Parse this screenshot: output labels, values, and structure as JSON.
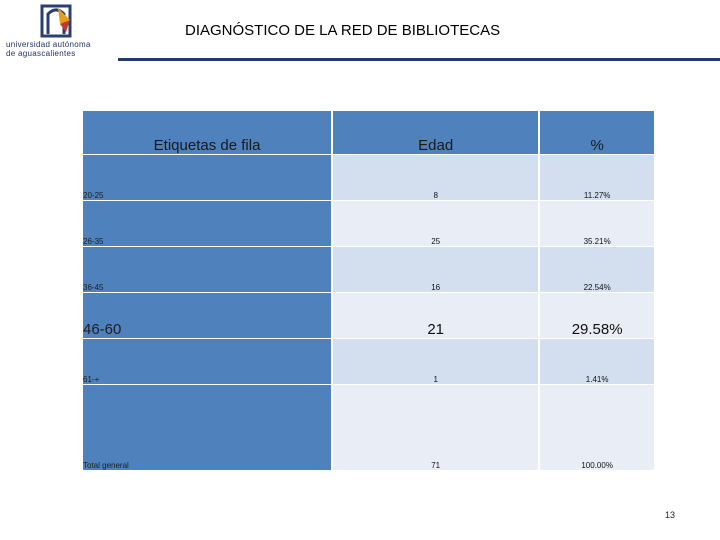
{
  "header": {
    "logo_line1": "universidad autónoma",
    "logo_line2": "de aguascalientes",
    "title": "DIAGNÓSTICO DE LA RED DE BIBLIOTECAS"
  },
  "table": {
    "headers": [
      "Etiquetas de fila",
      "Edad",
      "%"
    ],
    "rows": [
      {
        "label": "20-25",
        "edad": "8",
        "pct": "11.27%"
      },
      {
        "label": "26-35",
        "edad": "25",
        "pct": "35.21%"
      },
      {
        "label": "36-45",
        "edad": "16",
        "pct": "22.54%"
      },
      {
        "label": "46-60",
        "edad": "21",
        "pct": "29.58%"
      },
      {
        "label": "61-+",
        "edad": "1",
        "pct": "1.41%"
      }
    ],
    "total": {
      "label": "Total general",
      "edad": "71",
      "pct": "100.00%"
    }
  },
  "footer": {
    "page_number": "13"
  },
  "colors": {
    "header_blue": "#4f81bd",
    "row_band_dark": "#d3dfee",
    "row_band_light": "#e9eef6",
    "rule": "#1f3d6b"
  }
}
